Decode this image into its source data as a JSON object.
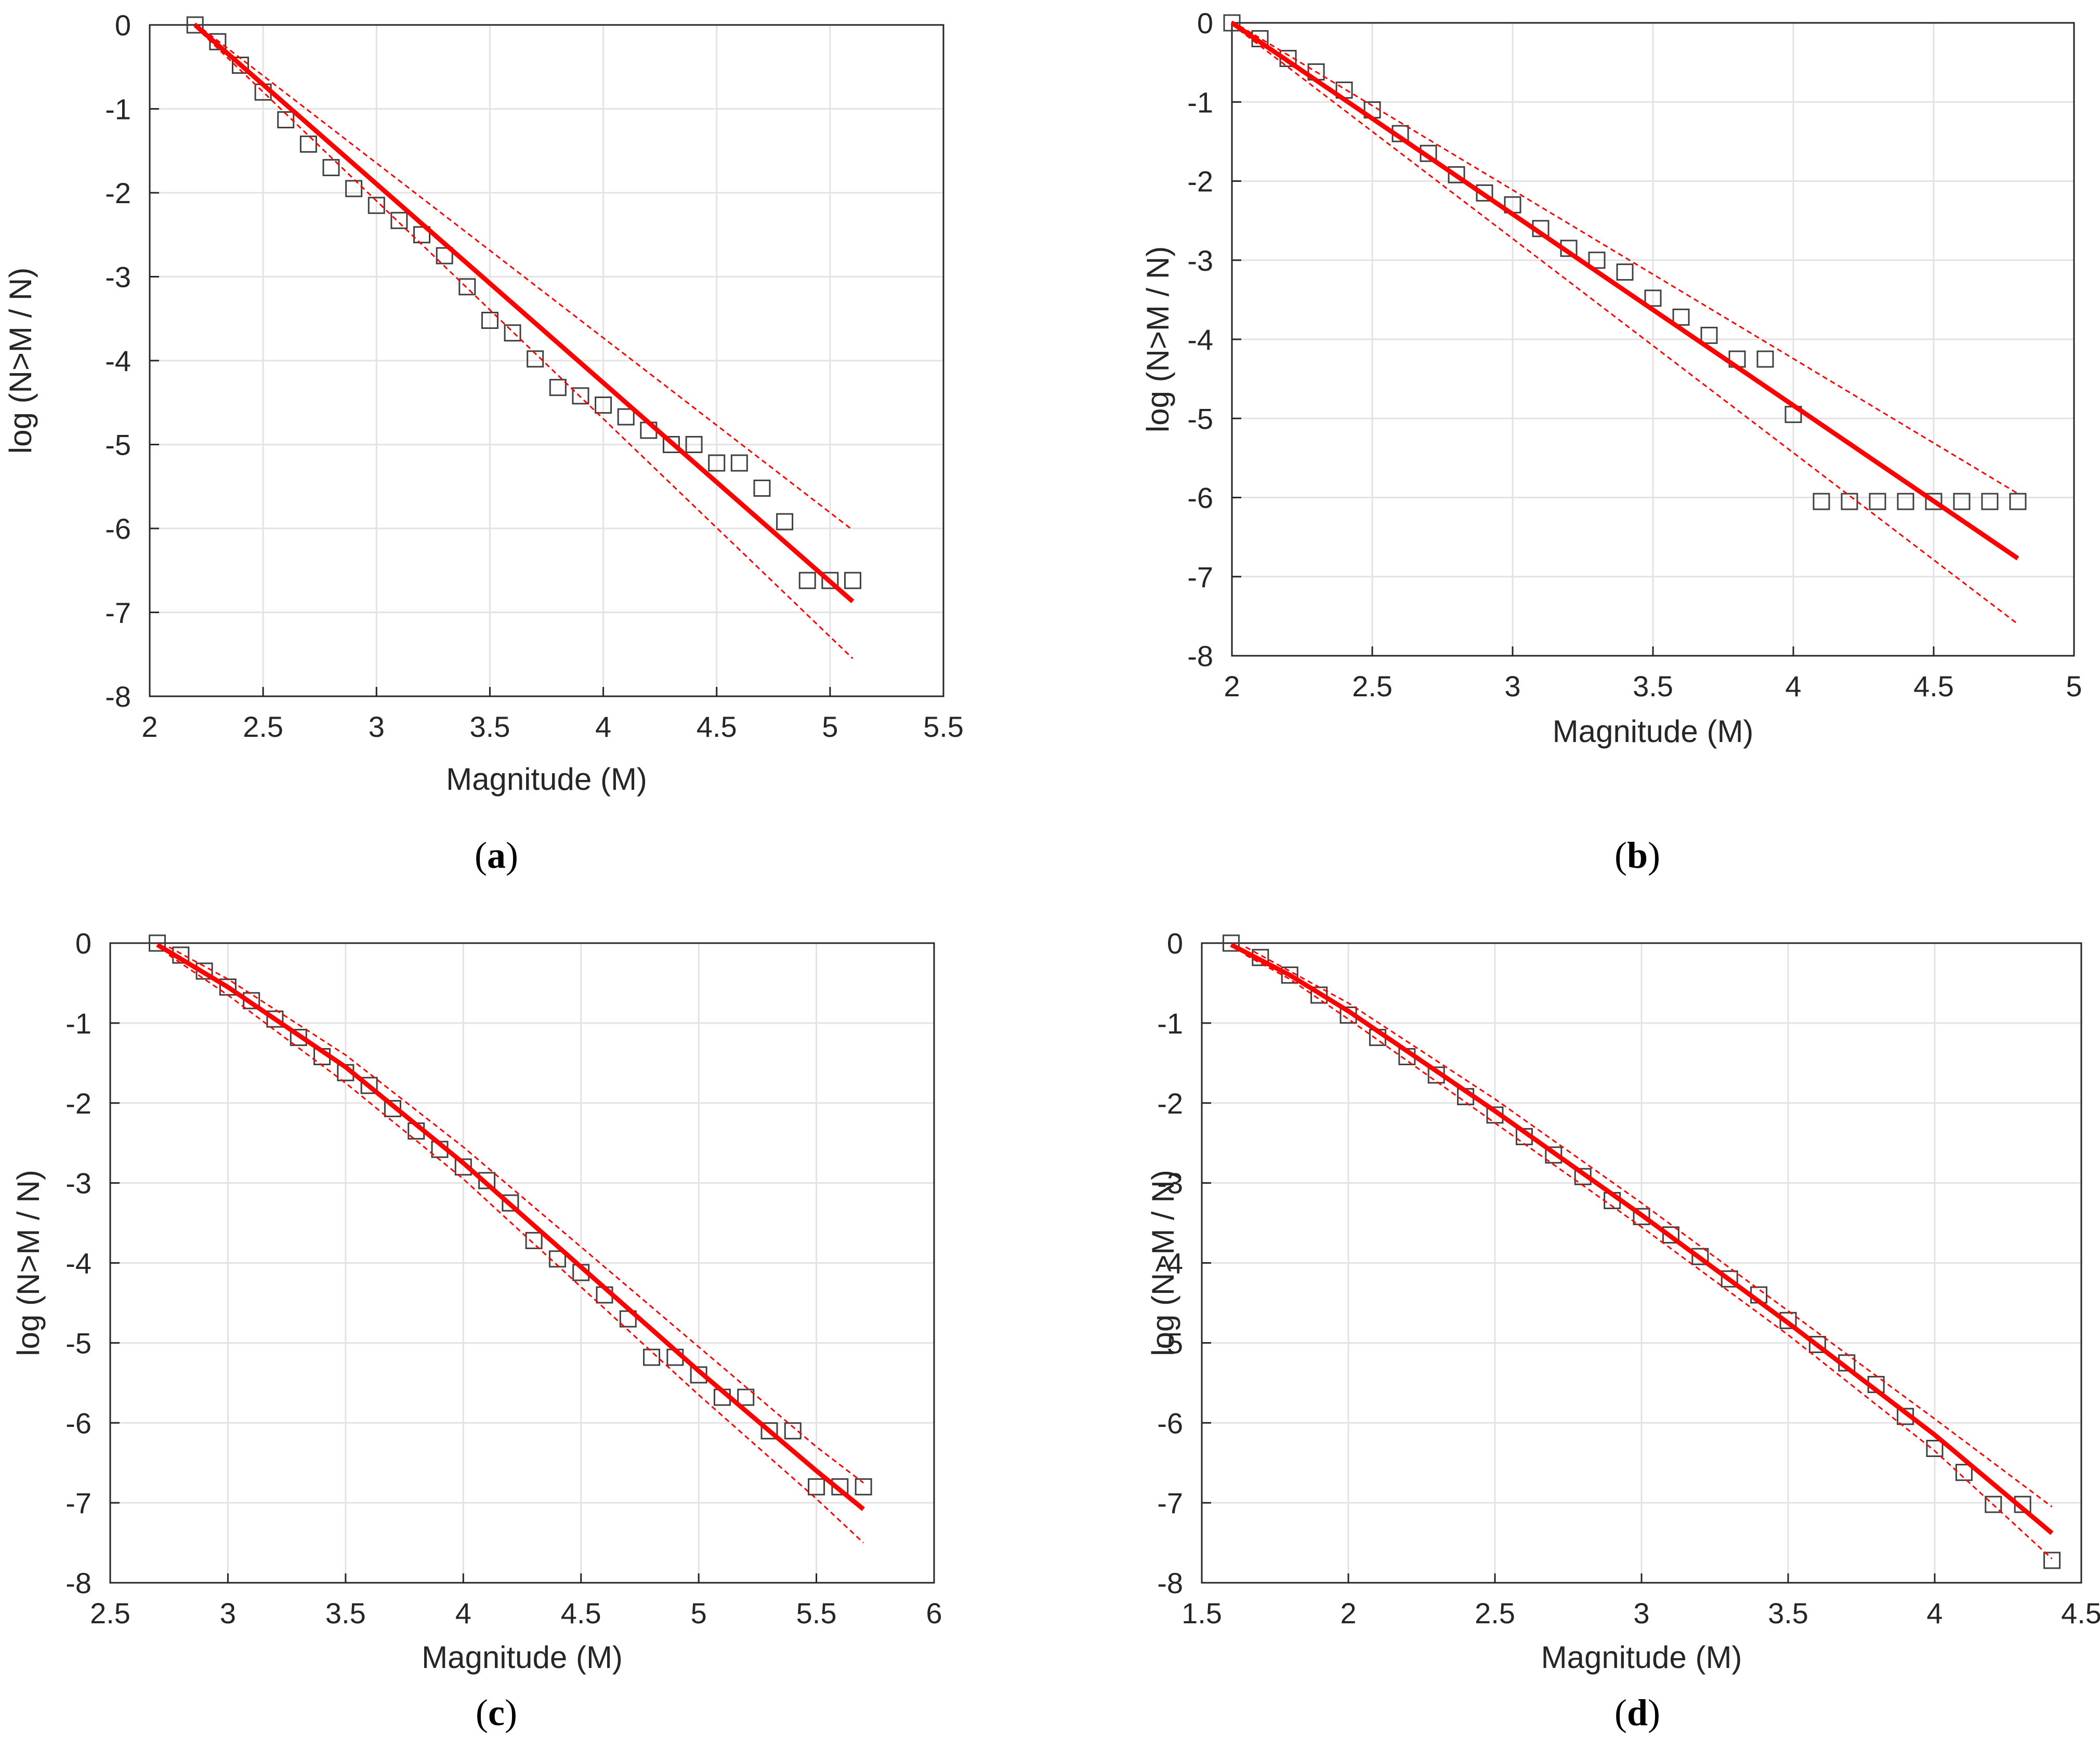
{
  "colors": {
    "fit": "#ff0000",
    "marker": "#404040",
    "grid": "#e3e3e3",
    "axis": "#262626",
    "box": "#262626"
  },
  "chart_data": [
    {
      "id": "a",
      "type": "scatter",
      "panel_label": {
        "open": "(",
        "letter": "a",
        "close": ")"
      },
      "xlabel": "Magnitude (M)",
      "ylabel": "log (N>M / N)",
      "xlim": [
        2,
        5.5
      ],
      "ylim": [
        -8,
        0
      ],
      "xticks": [
        2,
        2.5,
        3,
        3.5,
        4,
        4.5,
        5,
        5.5
      ],
      "xtick_labels": [
        "2",
        "2.5",
        "3",
        "3.5",
        "4",
        "4.5",
        "5",
        "5.5"
      ],
      "yticks": [
        0,
        -1,
        -2,
        -3,
        -4,
        -5,
        -6,
        -7,
        -8
      ],
      "ytick_labels": [
        "0",
        "-1",
        "-2",
        "-3",
        "-4",
        "-5",
        "-6",
        "-7",
        "-8"
      ],
      "grid": true,
      "series": [
        {
          "name": "observed",
          "style": "square-marker",
          "x": [
            2.2,
            2.3,
            2.4,
            2.5,
            2.6,
            2.7,
            2.8,
            2.9,
            3.0,
            3.1,
            3.2,
            3.3,
            3.4,
            3.5,
            3.6,
            3.7,
            3.8,
            3.9,
            4.0,
            4.1,
            4.2,
            4.3,
            4.4,
            4.5,
            4.6,
            4.7,
            4.8,
            4.9,
            5.0,
            5.1
          ],
          "y": [
            0,
            -0.2,
            -0.48,
            -0.8,
            -1.13,
            -1.42,
            -1.7,
            -1.95,
            -2.15,
            -2.33,
            -2.5,
            -2.75,
            -3.12,
            -3.52,
            -3.67,
            -3.98,
            -4.32,
            -4.42,
            -4.53,
            -4.67,
            -4.83,
            -5.0,
            -5.0,
            -5.22,
            -5.22,
            -5.52,
            -5.92,
            -6.62,
            -6.62,
            -6.62
          ]
        },
        {
          "name": "fit",
          "style": "solid",
          "x": [
            2.2,
            5.1
          ],
          "y": [
            0,
            -6.87
          ]
        },
        {
          "name": "upper bound",
          "style": "dashed",
          "x": [
            2.2,
            5.1
          ],
          "y": [
            0.02,
            -6.02
          ]
        },
        {
          "name": "lower bound",
          "style": "dashed",
          "x": [
            2.2,
            5.1
          ],
          "y": [
            -0.02,
            -7.55
          ]
        }
      ]
    },
    {
      "id": "b",
      "type": "scatter",
      "panel_label": {
        "open": "(",
        "letter": "b",
        "close": ")"
      },
      "xlabel": "Magnitude (M)",
      "ylabel": "log (N>M / N)",
      "xlim": [
        2,
        5
      ],
      "ylim": [
        -8,
        0
      ],
      "xticks": [
        2,
        2.5,
        3,
        3.5,
        4,
        4.5,
        5
      ],
      "xtick_labels": [
        "2",
        "2.5",
        "3",
        "3.5",
        "4",
        "4.5",
        "5"
      ],
      "yticks": [
        0,
        -1,
        -2,
        -3,
        -4,
        -5,
        -6,
        -7,
        -8
      ],
      "ytick_labels": [
        "0",
        "-1",
        "-2",
        "-3",
        "-4",
        "-5",
        "-6",
        "-7",
        "-8"
      ],
      "grid": true,
      "series": [
        {
          "name": "observed",
          "style": "square-marker",
          "x": [
            2.0,
            2.1,
            2.2,
            2.3,
            2.4,
            2.5,
            2.6,
            2.7,
            2.8,
            2.9,
            3.0,
            3.1,
            3.2,
            3.3,
            3.4,
            3.5,
            3.6,
            3.7,
            3.8,
            3.9,
            4.0,
            4.1,
            4.2,
            4.3,
            4.4,
            4.5,
            4.6,
            4.7,
            4.8
          ],
          "y": [
            0,
            -0.2,
            -0.45,
            -0.62,
            -0.85,
            -1.1,
            -1.4,
            -1.65,
            -1.92,
            -2.15,
            -2.3,
            -2.6,
            -2.85,
            -3.0,
            -3.15,
            -3.48,
            -3.72,
            -3.95,
            -4.25,
            -4.25,
            -4.95,
            -6.05,
            -6.05,
            -6.05,
            -6.05,
            -6.05,
            -6.05,
            -6.05,
            -6.05
          ]
        },
        {
          "name": "fit",
          "style": "solid",
          "x": [
            2.0,
            4.8
          ],
          "y": [
            0,
            -6.77
          ]
        },
        {
          "name": "upper bound",
          "style": "dashed",
          "x": [
            2.0,
            4.8
          ],
          "y": [
            0.02,
            -5.95
          ]
        },
        {
          "name": "lower bound",
          "style": "dashed",
          "x": [
            2.0,
            4.8
          ],
          "y": [
            -0.02,
            -7.6
          ]
        }
      ]
    },
    {
      "id": "c",
      "type": "scatter",
      "panel_label": {
        "open": "(",
        "letter": "c",
        "close": ")"
      },
      "xlabel": "Magnitude (M)",
      "ylabel": "log (N>M / N)",
      "xlim": [
        2.5,
        6
      ],
      "ylim": [
        -8,
        0
      ],
      "xticks": [
        2.5,
        3,
        3.5,
        4,
        4.5,
        5,
        5.5,
        6
      ],
      "xtick_labels": [
        "2.5",
        "3",
        "3.5",
        "4",
        "4.5",
        "5",
        "5.5",
        "6"
      ],
      "yticks": [
        0,
        -1,
        -2,
        -3,
        -4,
        -5,
        -6,
        -7,
        -8
      ],
      "ytick_labels": [
        "0",
        "-1",
        "-2",
        "-3",
        "-4",
        "-5",
        "-6",
        "-7",
        "-8"
      ],
      "grid": true,
      "series": [
        {
          "name": "observed",
          "style": "square-marker",
          "x": [
            2.7,
            2.8,
            2.9,
            3.0,
            3.1,
            3.2,
            3.3,
            3.4,
            3.5,
            3.6,
            3.7,
            3.8,
            3.9,
            4.0,
            4.1,
            4.2,
            4.3,
            4.4,
            4.5,
            4.6,
            4.7,
            4.8,
            4.9,
            5.0,
            5.1,
            5.2,
            5.3,
            5.4,
            5.5,
            5.6,
            5.7
          ],
          "y": [
            0,
            -0.15,
            -0.35,
            -0.55,
            -0.72,
            -0.95,
            -1.18,
            -1.42,
            -1.62,
            -1.78,
            -2.07,
            -2.35,
            -2.58,
            -2.8,
            -2.97,
            -3.25,
            -3.72,
            -3.95,
            -4.12,
            -4.4,
            -4.7,
            -5.18,
            -5.18,
            -5.4,
            -5.68,
            -5.68,
            -6.1,
            -6.1,
            -6.8,
            -6.8,
            -6.8
          ]
        },
        {
          "name": "fit",
          "style": "solid",
          "x": [
            2.7,
            3.0,
            3.5,
            4.0,
            4.5,
            5.0,
            5.5,
            5.7
          ],
          "y": [
            -0.02,
            -0.55,
            -1.55,
            -2.75,
            -4.05,
            -5.35,
            -6.6,
            -7.08
          ]
        },
        {
          "name": "upper bound",
          "style": "dashed",
          "x": [
            2.75,
            3.0,
            3.5,
            4.0,
            4.5,
            5.0,
            5.5,
            5.7
          ],
          "y": [
            -0.05,
            -0.45,
            -1.4,
            -2.55,
            -3.8,
            -5.05,
            -6.3,
            -6.75
          ]
        },
        {
          "name": "lower bound",
          "style": "dashed",
          "x": [
            2.75,
            3.0,
            3.5,
            4.0,
            4.5,
            5.0,
            5.5,
            5.7
          ],
          "y": [
            -0.15,
            -0.65,
            -1.75,
            -2.95,
            -4.3,
            -5.65,
            -6.95,
            -7.5
          ]
        }
      ]
    },
    {
      "id": "d",
      "type": "scatter",
      "panel_label": {
        "open": "(",
        "letter": "d",
        "close": ")"
      },
      "xlabel": "Magnitude (M)",
      "ylabel": "log (N>M / N)",
      "xlim": [
        1.5,
        4.5
      ],
      "ylim": [
        -8,
        0
      ],
      "xticks": [
        1.5,
        2,
        2.5,
        3,
        3.5,
        4,
        4.5
      ],
      "xtick_labels": [
        "1.5",
        "2",
        "2.5",
        "3",
        "3.5",
        "4",
        "4.5"
      ],
      "yticks": [
        0,
        -1,
        -2,
        -3,
        -4,
        -5,
        -6,
        -7,
        -8
      ],
      "ytick_labels": [
        "0",
        "-1",
        "-2",
        "-3",
        "-4",
        "-5",
        "-6",
        "-7",
        "-8"
      ],
      "grid": true,
      "series": [
        {
          "name": "observed",
          "style": "square-marker",
          "x": [
            1.6,
            1.7,
            1.8,
            1.9,
            2.0,
            2.1,
            2.2,
            2.3,
            2.4,
            2.5,
            2.6,
            2.7,
            2.8,
            2.9,
            3.0,
            3.1,
            3.2,
            3.3,
            3.4,
            3.5,
            3.6,
            3.7,
            3.8,
            3.9,
            4.0,
            4.1,
            4.2,
            4.3,
            4.4
          ],
          "y": [
            0,
            -0.18,
            -0.4,
            -0.65,
            -0.9,
            -1.18,
            -1.42,
            -1.65,
            -1.92,
            -2.15,
            -2.42,
            -2.65,
            -2.92,
            -3.22,
            -3.42,
            -3.65,
            -3.92,
            -4.2,
            -4.4,
            -4.72,
            -5.02,
            -5.25,
            -5.52,
            -5.92,
            -6.32,
            -6.62,
            -7.02,
            -7.02,
            -7.72
          ]
        },
        {
          "name": "fit",
          "style": "solid",
          "x": [
            1.6,
            1.8,
            2.0,
            2.5,
            3.0,
            3.5,
            4.0,
            4.4
          ],
          "y": [
            -0.02,
            -0.4,
            -0.85,
            -2.1,
            -3.4,
            -4.75,
            -6.15,
            -7.38
          ]
        },
        {
          "name": "upper bound",
          "style": "dashed",
          "x": [
            1.65,
            1.8,
            2.0,
            2.5,
            3.0,
            3.5,
            4.0,
            4.4
          ],
          "y": [
            -0.05,
            -0.35,
            -0.75,
            -1.95,
            -3.25,
            -4.6,
            -5.95,
            -7.05
          ]
        },
        {
          "name": "lower bound",
          "style": "dashed",
          "x": [
            1.65,
            1.8,
            2.0,
            2.5,
            3.0,
            3.5,
            4.0,
            4.4
          ],
          "y": [
            -0.15,
            -0.45,
            -0.95,
            -2.25,
            -3.55,
            -4.9,
            -6.35,
            -7.7
          ]
        }
      ]
    }
  ]
}
